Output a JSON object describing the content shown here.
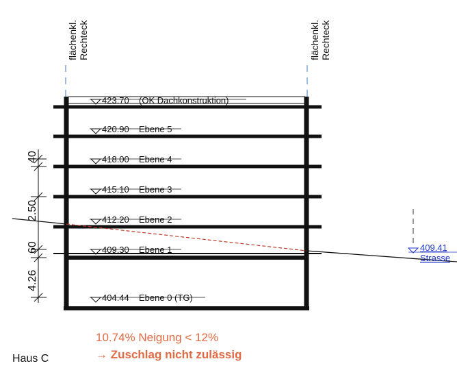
{
  "left_axis_label": [
    "flächenkl.",
    "Rechteck"
  ],
  "right_axis_label": [
    "flächenkl.",
    "Rechteck"
  ],
  "levels": [
    {
      "elevation": "423.70",
      "name": "(OK Dachkonstruktion)"
    },
    {
      "elevation": "420.90",
      "name": "Ebene 5"
    },
    {
      "elevation": "418.00",
      "name": "Ebene 4"
    },
    {
      "elevation": "415.10",
      "name": "Ebene 3"
    },
    {
      "elevation": "412.20",
      "name": "Ebene 2"
    },
    {
      "elevation": "409.30",
      "name": "Ebene 1"
    },
    {
      "elevation": "404.44",
      "name": "Ebene 0 (TG)"
    }
  ],
  "dimensions": [
    "40",
    "2.50",
    "60",
    "4.26"
  ],
  "street": {
    "elevation": "409.41",
    "label": "Strasse"
  },
  "note_slope": "10.74% Neigung < 12%",
  "note_result": "→ Zuschlag nicht zulässig",
  "house_label": "Haus C",
  "colors": {
    "line": "#111111",
    "axis": "#5b8fd6",
    "street": "#1f35c9",
    "note": "#e06a44",
    "terrain_dashed": "#c0392b"
  }
}
